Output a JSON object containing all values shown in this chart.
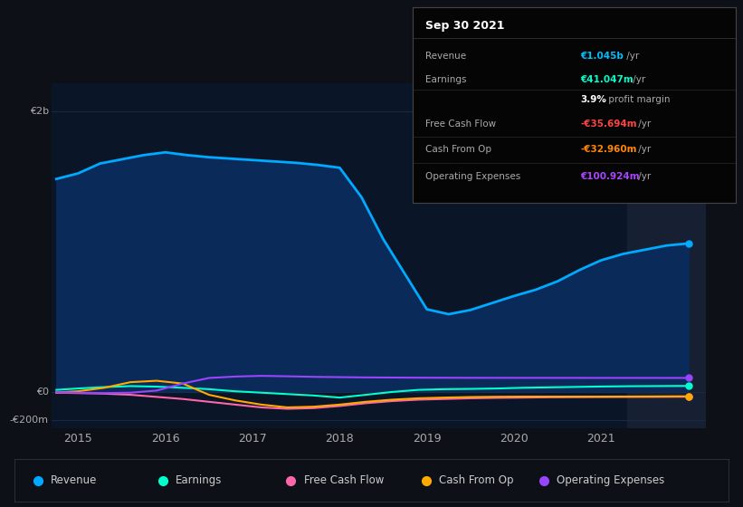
{
  "background_color": "#0d1117",
  "plot_bg_color": "#0a1628",
  "grid_color": "#1e2d45",
  "title_box": {
    "title": "Sep 30 2021",
    "rows": [
      {
        "label": "Revenue",
        "value": "€1.045b",
        "suffix": " /yr",
        "value_color": "#00bfff"
      },
      {
        "label": "Earnings",
        "value": "€41.047m",
        "suffix": " /yr",
        "value_color": "#00ffcc"
      },
      {
        "label": "",
        "value": "3.9%",
        "suffix": " profit margin",
        "value_color": "#ffffff"
      },
      {
        "label": "Free Cash Flow",
        "value": "-€35.694m",
        "suffix": " /yr",
        "value_color": "#ff4444"
      },
      {
        "label": "Cash From Op",
        "value": "-€32.960m",
        "suffix": " /yr",
        "value_color": "#ff8800"
      },
      {
        "label": "Operating Expenses",
        "value": "€100.924m",
        "suffix": " /yr",
        "value_color": "#aa44ff"
      }
    ]
  },
  "ylim": [
    -260000000,
    2200000000
  ],
  "xlim": [
    2014.7,
    2022.2
  ],
  "xticks": [
    2015,
    2016,
    2017,
    2018,
    2019,
    2020,
    2021
  ],
  "highlight_start": 2021.3,
  "highlight_color": "#162032",
  "series": {
    "revenue": {
      "color": "#00aaff",
      "fill_color": "#0a2a5a",
      "label": "Revenue",
      "x": [
        2014.75,
        2015.0,
        2015.25,
        2015.5,
        2015.75,
        2016.0,
        2016.25,
        2016.5,
        2016.75,
        2017.0,
        2017.25,
        2017.5,
        2017.75,
        2018.0,
        2018.25,
        2018.5,
        2018.75,
        2019.0,
        2019.25,
        2019.5,
        2019.75,
        2020.0,
        2020.25,
        2020.5,
        2020.75,
        2021.0,
        2021.25,
        2021.5,
        2021.75,
        2022.0
      ],
      "y": [
        1520000000,
        1560000000,
        1630000000,
        1660000000,
        1690000000,
        1710000000,
        1690000000,
        1675000000,
        1665000000,
        1655000000,
        1645000000,
        1635000000,
        1620000000,
        1600000000,
        1390000000,
        1090000000,
        840000000,
        590000000,
        555000000,
        585000000,
        635000000,
        685000000,
        730000000,
        790000000,
        870000000,
        940000000,
        985000000,
        1015000000,
        1045000000,
        1060000000
      ]
    },
    "earnings": {
      "color": "#00ffcc",
      "label": "Earnings",
      "x": [
        2014.75,
        2015.0,
        2015.3,
        2015.6,
        2015.9,
        2016.2,
        2016.5,
        2016.8,
        2017.1,
        2017.4,
        2017.7,
        2018.0,
        2018.3,
        2018.6,
        2018.9,
        2019.2,
        2019.5,
        2019.8,
        2020.1,
        2020.4,
        2020.7,
        2021.0,
        2021.3,
        2021.6,
        2021.9,
        2022.0
      ],
      "y": [
        15000000,
        25000000,
        35000000,
        42000000,
        38000000,
        30000000,
        20000000,
        5000000,
        -5000000,
        -15000000,
        -25000000,
        -40000000,
        -20000000,
        0,
        15000000,
        20000000,
        22000000,
        25000000,
        30000000,
        33000000,
        36000000,
        39000000,
        41000000,
        42000000,
        43000000,
        43000000
      ]
    },
    "free_cash_flow": {
      "color": "#ff66aa",
      "label": "Free Cash Flow",
      "x": [
        2014.75,
        2015.0,
        2015.3,
        2015.6,
        2015.9,
        2016.2,
        2016.5,
        2016.8,
        2017.1,
        2017.4,
        2017.7,
        2018.0,
        2018.3,
        2018.6,
        2018.9,
        2019.2,
        2019.5,
        2019.8,
        2020.1,
        2020.4,
        2020.7,
        2021.0,
        2021.3,
        2021.6,
        2021.9,
        2022.0
      ],
      "y": [
        -5000000,
        -8000000,
        -12000000,
        -20000000,
        -35000000,
        -50000000,
        -70000000,
        -90000000,
        -110000000,
        -120000000,
        -115000000,
        -100000000,
        -80000000,
        -65000000,
        -55000000,
        -50000000,
        -45000000,
        -42000000,
        -40000000,
        -38000000,
        -37000000,
        -36000000,
        -35694000,
        -35000000,
        -34000000,
        -34000000
      ]
    },
    "cash_from_op": {
      "color": "#ffaa00",
      "label": "Cash From Op",
      "x": [
        2014.75,
        2015.0,
        2015.3,
        2015.6,
        2015.9,
        2016.2,
        2016.5,
        2016.8,
        2017.1,
        2017.4,
        2017.7,
        2018.0,
        2018.3,
        2018.6,
        2018.9,
        2019.2,
        2019.5,
        2019.8,
        2020.1,
        2020.4,
        2020.7,
        2021.0,
        2021.3,
        2021.6,
        2021.9,
        2022.0
      ],
      "y": [
        -3000000,
        5000000,
        30000000,
        70000000,
        80000000,
        60000000,
        -20000000,
        -60000000,
        -90000000,
        -110000000,
        -105000000,
        -90000000,
        -70000000,
        -55000000,
        -45000000,
        -40000000,
        -36000000,
        -34000000,
        -33000000,
        -33000000,
        -33000000,
        -32960000,
        -32500000,
        -32000000,
        -31000000,
        -31000000
      ]
    },
    "operating_expenses": {
      "color": "#9944ff",
      "label": "Operating Expenses",
      "x": [
        2014.75,
        2015.0,
        2015.3,
        2015.6,
        2015.9,
        2016.2,
        2016.5,
        2016.8,
        2017.1,
        2017.4,
        2017.7,
        2018.0,
        2018.3,
        2018.6,
        2018.9,
        2019.2,
        2019.5,
        2019.8,
        2020.1,
        2020.4,
        2020.7,
        2021.0,
        2021.3,
        2021.6,
        2021.9,
        2022.0
      ],
      "y": [
        -2000000,
        -5000000,
        -8000000,
        -5000000,
        10000000,
        60000000,
        100000000,
        110000000,
        115000000,
        112000000,
        108000000,
        106000000,
        104000000,
        103000000,
        102000000,
        101500000,
        101000000,
        100924000,
        100800000,
        100700000,
        100600000,
        100500000,
        100400000,
        100300000,
        100200000,
        100000000
      ]
    }
  }
}
